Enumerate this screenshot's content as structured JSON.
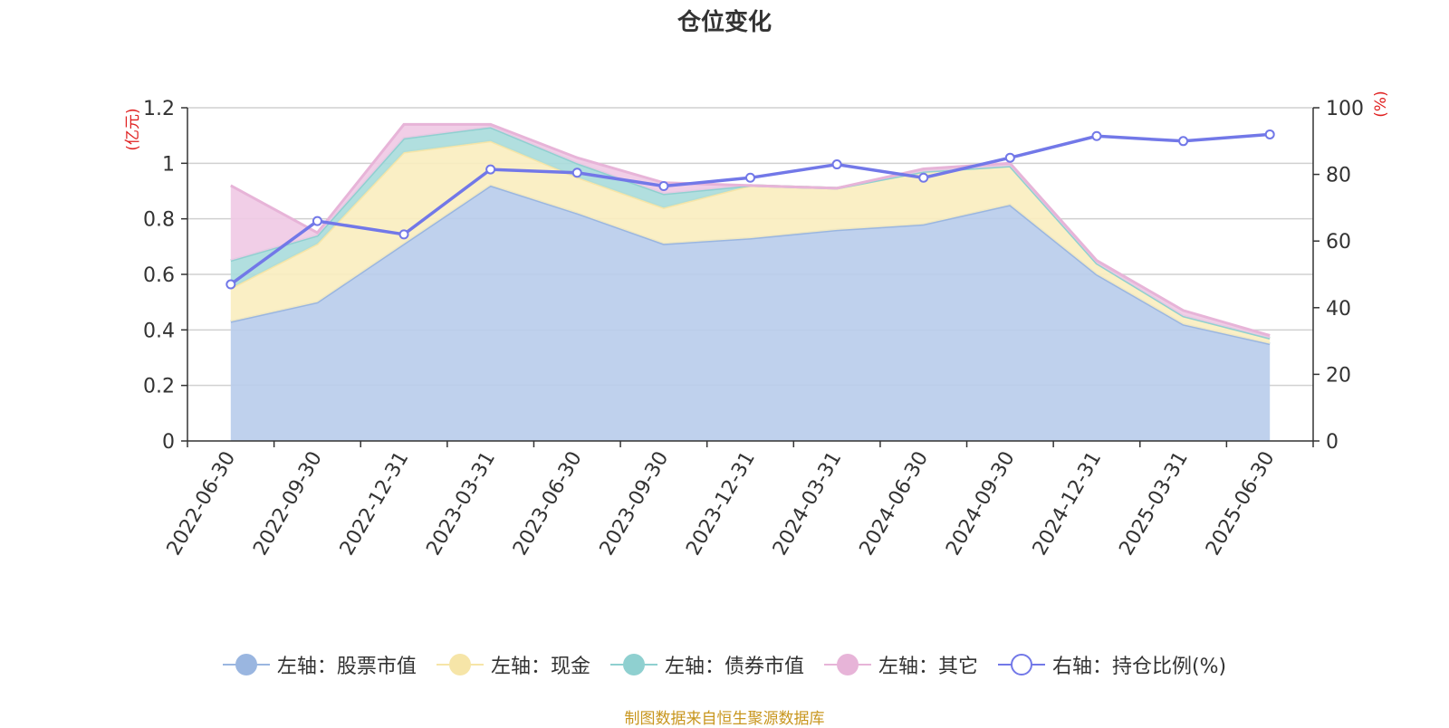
{
  "chart_data": {
    "type": "area",
    "title": "仓位变化",
    "left_axis_label": "(亿元)",
    "right_axis_label": "(%)",
    "categories": [
      "2022-06-30",
      "2022-09-30",
      "2022-12-31",
      "2023-03-31",
      "2023-06-30",
      "2023-09-30",
      "2023-12-31",
      "2024-03-31",
      "2024-06-30",
      "2024-09-30",
      "2024-12-31",
      "2025-03-31",
      "2025-06-30"
    ],
    "left_ylim": [
      0,
      1.2
    ],
    "left_yticks": [
      "0",
      "0.2",
      "0.4",
      "0.6",
      "0.8",
      "1",
      "1.2"
    ],
    "right_ylim": [
      0,
      100
    ],
    "right_yticks": [
      "0",
      "20",
      "40",
      "60",
      "80",
      "100"
    ],
    "stacked": true,
    "grid": true,
    "legend_position": "bottom",
    "series": [
      {
        "name": "左轴：股票市值",
        "axis": "left",
        "color": "#9ab6e0",
        "fill": "#b8cceb",
        "values": [
          0.43,
          0.5,
          0.71,
          0.92,
          0.82,
          0.71,
          0.73,
          0.76,
          0.78,
          0.85,
          0.6,
          0.42,
          0.35
        ]
      },
      {
        "name": "左轴：现金",
        "axis": "left",
        "color": "#f6e5a8",
        "fill": "#f9edbf",
        "values": [
          0.12,
          0.21,
          0.33,
          0.16,
          0.13,
          0.13,
          0.19,
          0.15,
          0.19,
          0.14,
          0.04,
          0.03,
          0.02
        ]
      },
      {
        "name": "左轴：债券市值",
        "axis": "left",
        "color": "#8fd0d0",
        "fill": "#a9dcdc",
        "values": [
          0.1,
          0.03,
          0.05,
          0.05,
          0.05,
          0.05,
          0.0,
          0.0,
          0.0,
          0.0,
          0.0,
          0.0,
          0.0
        ]
      },
      {
        "name": "左轴：其它",
        "axis": "left",
        "color": "#e7b4d8",
        "fill": "#efc9e4",
        "values": [
          0.27,
          0.01,
          0.05,
          0.01,
          0.02,
          0.04,
          0.0,
          0.0,
          0.01,
          0.01,
          0.01,
          0.02,
          0.01
        ]
      },
      {
        "name": "右轴：持仓比例(%)",
        "axis": "right",
        "type": "line",
        "color": "#7278e8",
        "values": [
          47,
          66,
          62,
          81.5,
          80.5,
          76.5,
          79,
          83,
          79,
          85,
          91.5,
          90,
          92
        ]
      }
    ]
  },
  "footer": {
    "source": "制图数据来自恒生聚源数据库"
  }
}
